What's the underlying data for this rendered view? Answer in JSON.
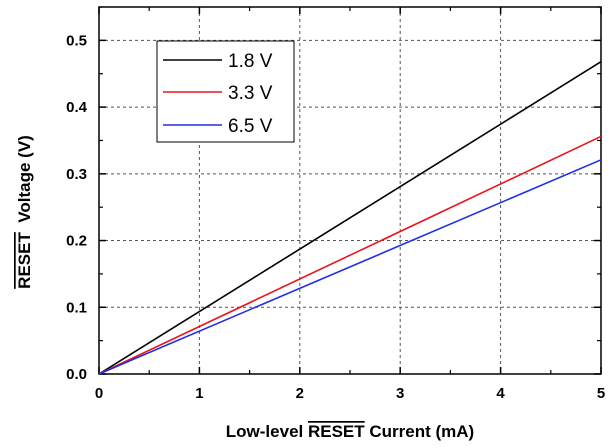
{
  "chart_data": {
    "type": "line",
    "xlabel_prefix": "Low-level ",
    "xlabel_overlined": "RESET",
    "xlabel_suffix": " Current (mA)",
    "ylabel_overlined": "RESET",
    "ylabel_suffix": "  Voltage (V)",
    "xlim": [
      0,
      5
    ],
    "ylim": [
      0,
      0.55
    ],
    "xticks": [
      "0",
      "1",
      "2",
      "3",
      "4",
      "5"
    ],
    "yticks": [
      "0.0",
      "0.1",
      "0.2",
      "0.3",
      "0.4",
      "0.5"
    ],
    "grid": true,
    "legend_position": "top-left",
    "series": [
      {
        "name": "1.8 V",
        "color": "#000000",
        "x": [
          0,
          5
        ],
        "y": [
          0,
          0.468
        ]
      },
      {
        "name": "3.3 V",
        "color": "#e8141c",
        "x": [
          0,
          5
        ],
        "y": [
          0,
          0.356
        ]
      },
      {
        "name": "6.5 V",
        "color": "#1f2ee6",
        "x": [
          0,
          5
        ],
        "y": [
          0,
          0.321
        ]
      }
    ]
  }
}
